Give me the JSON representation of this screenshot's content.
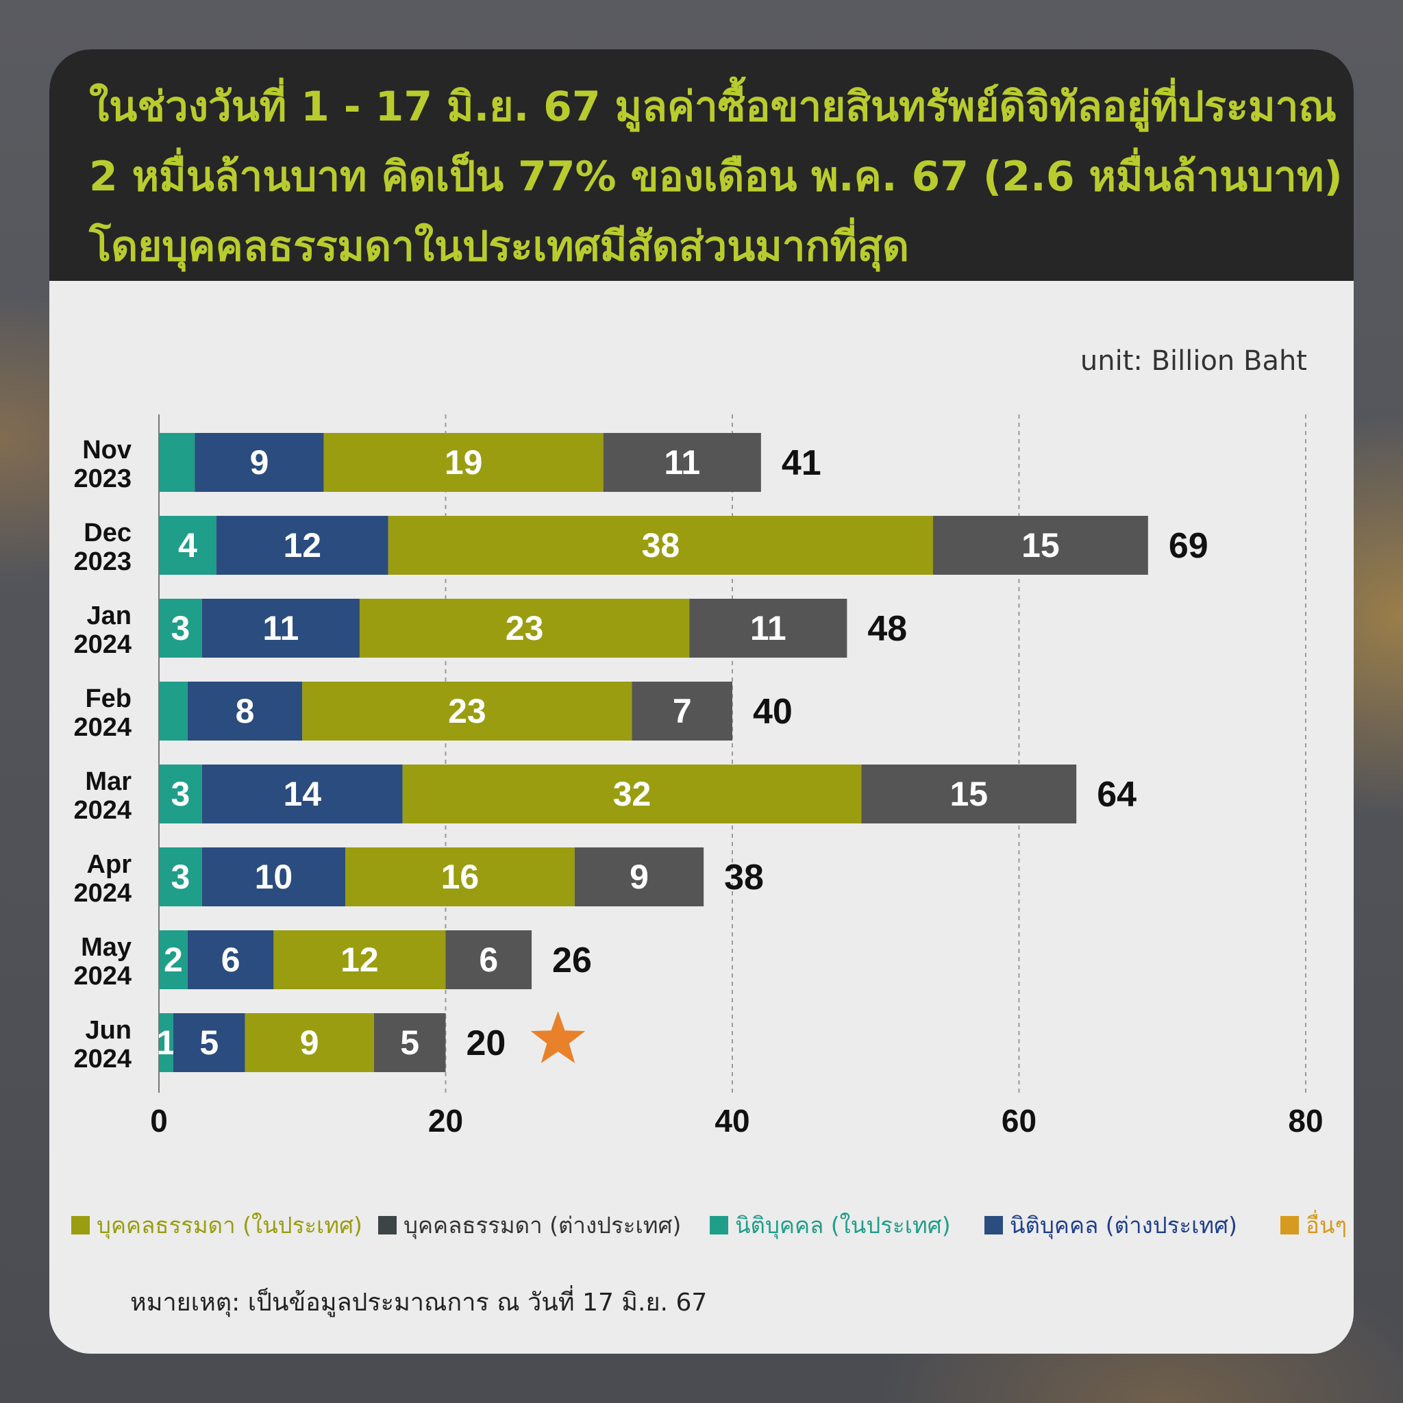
{
  "header": {
    "line1": "ในช่วงวันที่ 1 - 17 มิ.ย. 67 มูลค่าซื้อขายสินทรัพย์ดิจิทัลอยู่ที่ประมาณ",
    "line2": "2 หมื่นล้านบาท คิดเป็น 77% ของเดือน พ.ค. 67 (2.6 หมื่นล้านบาท)",
    "line3": "โดยบุคคลธรรมดาในประเทศมีสัดส่วนมากที่สุด"
  },
  "unit_label": "unit: Billion Baht",
  "note": "หมายเหตุ: เป็นข้อมูลประมาณการ ณ วันที่ 17 มิ.ย. 67",
  "colors": {
    "legal_domestic": "#1f9e8a",
    "legal_foreign": "#2b4c7e",
    "individual_domestic": "#9a9d10",
    "individual_foreign": "#555555",
    "others": "#d69a1e",
    "star": "#e8812a"
  },
  "chart_data": {
    "type": "bar",
    "orientation": "horizontal",
    "stacked": true,
    "categories": [
      [
        "Nov",
        "2023"
      ],
      [
        "Dec",
        "2023"
      ],
      [
        "Jan",
        "2024"
      ],
      [
        "Feb",
        "2024"
      ],
      [
        "Mar",
        "2024"
      ],
      [
        "Apr",
        "2024"
      ],
      [
        "May",
        "2024"
      ],
      [
        "Jun",
        "2024"
      ]
    ],
    "series": [
      {
        "name": "นิติบุคคล (ในประเทศ)",
        "key": "legal_domestic",
        "values": [
          2.5,
          4,
          3,
          2,
          3,
          3,
          2,
          1
        ],
        "labels": [
          "",
          "4",
          "3",
          "",
          "3",
          "3",
          "2",
          "1"
        ]
      },
      {
        "name": "นิติบุคคล (ต่างประเทศ)",
        "key": "legal_foreign",
        "values": [
          9,
          12,
          11,
          8,
          14,
          10,
          6,
          5
        ],
        "labels": [
          "9",
          "12",
          "11",
          "8",
          "14",
          "10",
          "6",
          "5"
        ]
      },
      {
        "name": "บุคคลธรรมดา (ในประเทศ)",
        "key": "individual_domestic",
        "values": [
          19.5,
          38,
          23,
          23,
          32,
          16,
          12,
          9
        ],
        "labels": [
          "19",
          "38",
          "23",
          "23",
          "32",
          "16",
          "12",
          "9"
        ]
      },
      {
        "name": "บุคคลธรรมดา (ต่างประเทศ)",
        "key": "individual_foreign",
        "values": [
          11,
          15,
          11,
          7,
          15,
          9,
          6,
          5
        ],
        "labels": [
          "11",
          "15",
          "11",
          "7",
          "15",
          "9",
          "6",
          "5"
        ]
      }
    ],
    "totals": [
      "41",
      "69",
      "48",
      "40",
      "64",
      "38",
      "26",
      "20"
    ],
    "xlim": [
      0,
      80
    ],
    "xticks": [
      "0",
      "20",
      "40",
      "60",
      "80"
    ],
    "grid": "vertical dashed",
    "highlight": {
      "category_index": 7,
      "marker": "star"
    },
    "legend": {
      "placement": "bottom",
      "entries": [
        {
          "label": "บุคคลธรรมดา (ในประเทศ)",
          "key": "individual_domestic"
        },
        {
          "label": "บุคคลธรรมดา (ต่างประเทศ)",
          "key": "individual_foreign"
        },
        {
          "label": "นิติบุคคล (ในประเทศ)",
          "key": "legal_domestic"
        },
        {
          "label": "นิติบุคคล (ต่างประเทศ)",
          "key": "legal_foreign"
        },
        {
          "label": "อื่นๆ",
          "key": "others"
        }
      ]
    }
  }
}
